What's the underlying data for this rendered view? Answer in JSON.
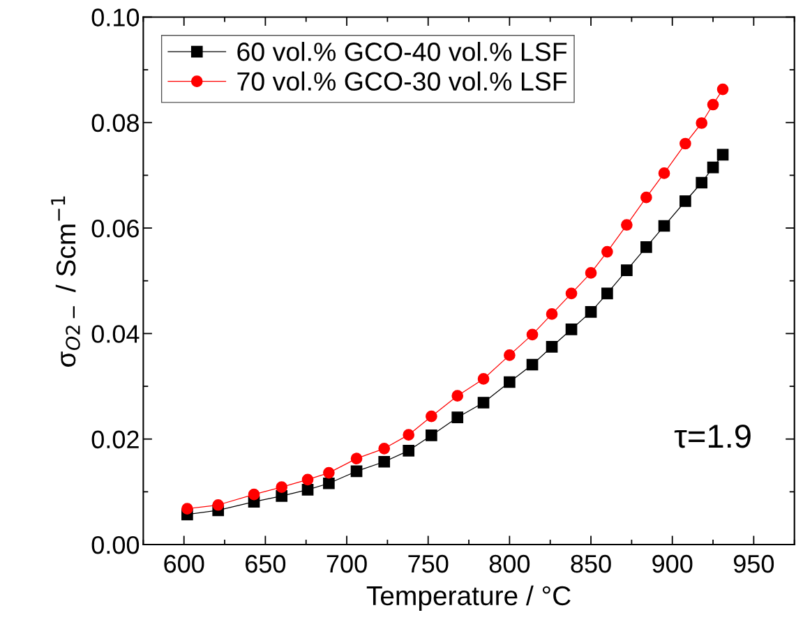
{
  "chart_data": {
    "type": "line",
    "xlabel": "Temperature / °C",
    "ylabel": "σ$_{O2−}$ / Scm$^{−1}$",
    "annotations": [
      "τ=1.9"
    ],
    "xlim": [
      575,
      975
    ],
    "xticks": [
      600,
      650,
      700,
      750,
      800,
      850,
      900,
      950
    ],
    "ylim": [
      0,
      0.1
    ],
    "yticks": [
      {
        "value": 0,
        "label": "0.00"
      },
      {
        "value": 0.02,
        "label": "0.02"
      },
      {
        "value": 0.04,
        "label": "0.04"
      },
      {
        "value": 0.06,
        "label": "0.06"
      },
      {
        "value": 0.08,
        "label": "0.08"
      },
      {
        "value": 0.1,
        "label": "0.10"
      }
    ],
    "x": [
      602,
      621,
      643,
      660,
      676,
      689,
      706,
      723,
      738,
      752,
      768,
      784,
      800,
      814,
      826,
      838,
      850,
      860,
      872,
      884,
      895,
      908,
      918,
      925,
      931
    ],
    "series": [
      {
        "name": "60 vol.% GCO-40 vol.% LSF",
        "color": "#000000",
        "marker": "square",
        "values": [
          0.0057,
          0.0065,
          0.0081,
          0.0092,
          0.0104,
          0.0116,
          0.0139,
          0.0157,
          0.0178,
          0.0207,
          0.0241,
          0.0269,
          0.0308,
          0.0341,
          0.0375,
          0.0408,
          0.0441,
          0.0476,
          0.052,
          0.0564,
          0.0604,
          0.0651,
          0.0686,
          0.0715,
          0.0739
        ]
      },
      {
        "name": "70 vol.% GCO-30 vol.% LSF",
        "color": "#ff0000",
        "marker": "circle",
        "values": [
          0.0068,
          0.0075,
          0.0095,
          0.0109,
          0.0123,
          0.0136,
          0.0163,
          0.0182,
          0.0208,
          0.0243,
          0.0282,
          0.0314,
          0.0359,
          0.0398,
          0.0437,
          0.0476,
          0.0515,
          0.0555,
          0.0606,
          0.0658,
          0.0704,
          0.076,
          0.0799,
          0.0834,
          0.0863
        ]
      }
    ],
    "legend": "top left",
    "grid": false,
    "line_style": "solid"
  }
}
